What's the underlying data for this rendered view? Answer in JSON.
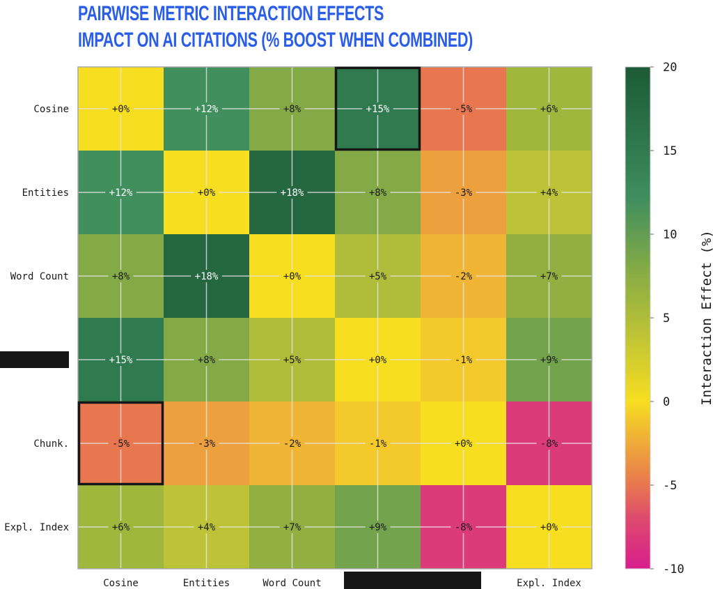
{
  "title_line1": "PAIRWISE METRIC INTERACTION EFFECTS",
  "title_line2": "IMPACT ON AI CITATIONS (% BOOST WHEN COMBINED)",
  "chart_data": {
    "type": "heatmap",
    "title": "PAIRWISE METRIC INTERACTION EFFECTS / IMPACT ON AI CITATIONS (% BOOST WHEN COMBINED)",
    "row_labels": [
      "Cosine",
      "Entities",
      "Word Count",
      "",
      "Chunk.",
      "Expl. Index"
    ],
    "col_labels": [
      "Cosine",
      "Entities",
      "Word Count",
      "",
      "",
      "Expl. Index"
    ],
    "values": [
      [
        0,
        12,
        8,
        15,
        -5,
        6
      ],
      [
        12,
        0,
        18,
        8,
        -3,
        4
      ],
      [
        8,
        18,
        0,
        5,
        -2,
        7
      ],
      [
        15,
        8,
        5,
        0,
        -1,
        9
      ],
      [
        -5,
        -3,
        -2,
        -1,
        0,
        -8
      ],
      [
        6,
        4,
        7,
        9,
        -8,
        0
      ]
    ],
    "cell_labels": [
      [
        "+0%",
        "+12%",
        "+8%",
        "+15%",
        "-5%",
        "+6%"
      ],
      [
        "+12%",
        "+0%",
        "+18%",
        "+8%",
        "-3%",
        "+4%"
      ],
      [
        "+8%",
        "+18%",
        "+0%",
        "+5%",
        "-2%",
        "+7%"
      ],
      [
        "+15%",
        "+8%",
        "+5%",
        "+0%",
        "-1%",
        "+9%"
      ],
      [
        "-5%",
        "-3%",
        "-2%",
        "-1%",
        "+0%",
        "-8%"
      ],
      [
        "+6%",
        "+4%",
        "+7%",
        "+9%",
        "-8%",
        "+0%"
      ]
    ],
    "highlighted_cells": [
      [
        0,
        3
      ],
      [
        4,
        0
      ]
    ],
    "colorbar": {
      "label": "Interaction Effect (%)",
      "range": [
        -10,
        20
      ],
      "ticks": [
        "20",
        "15",
        "10",
        "5",
        "0",
        "-5",
        "-10"
      ],
      "tick_values": [
        20,
        15,
        10,
        5,
        0,
        -5,
        -10
      ],
      "stops": [
        {
          "v": -10,
          "c": "#d81e8c"
        },
        {
          "v": -7,
          "c": "#dd4a6e"
        },
        {
          "v": -5,
          "c": "#e8774f"
        },
        {
          "v": -3,
          "c": "#eda03e"
        },
        {
          "v": 0,
          "c": "#f7de21"
        },
        {
          "v": 4,
          "c": "#bdc336"
        },
        {
          "v": 8,
          "c": "#83aa46"
        },
        {
          "v": 12,
          "c": "#428f5e"
        },
        {
          "v": 15,
          "c": "#2f7b4f"
        },
        {
          "v": 20,
          "c": "#1d5a36"
        }
      ]
    },
    "grid": true
  }
}
